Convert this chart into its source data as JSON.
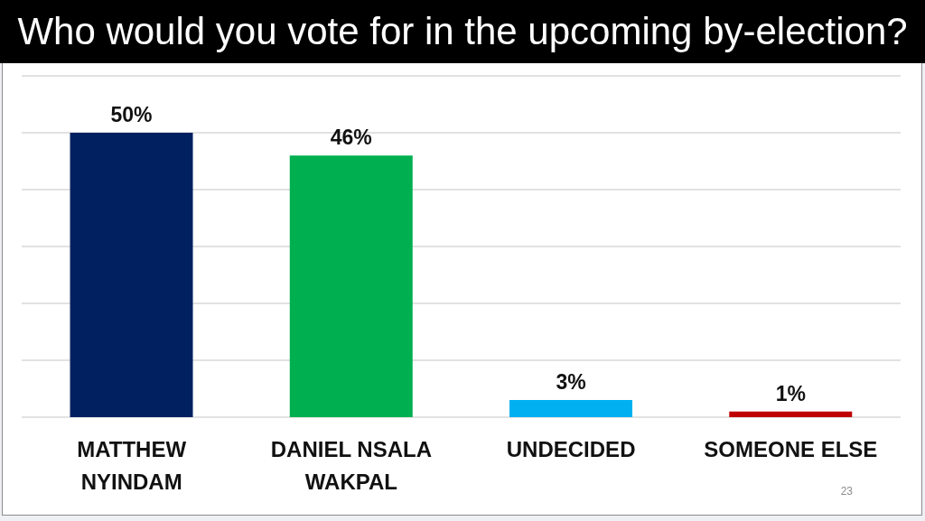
{
  "chart_data": {
    "type": "bar",
    "title": "Who would you vote for in the upcoming by-election?",
    "categories": [
      "MATTHEW NYINDAM",
      "DANIEL NSALA WAKPAL",
      "UNDECIDED",
      "SOMEONE ELSE"
    ],
    "values": [
      50,
      46,
      3,
      1
    ],
    "colors": [
      "#002060",
      "#00b050",
      "#00b0f0",
      "#c00000"
    ],
    "value_labels": [
      "50%",
      "46%",
      "3%",
      "1%"
    ],
    "ylim": [
      0,
      60
    ],
    "tick_labels": "x",
    "grid": "y",
    "annotations": [
      "23"
    ]
  }
}
